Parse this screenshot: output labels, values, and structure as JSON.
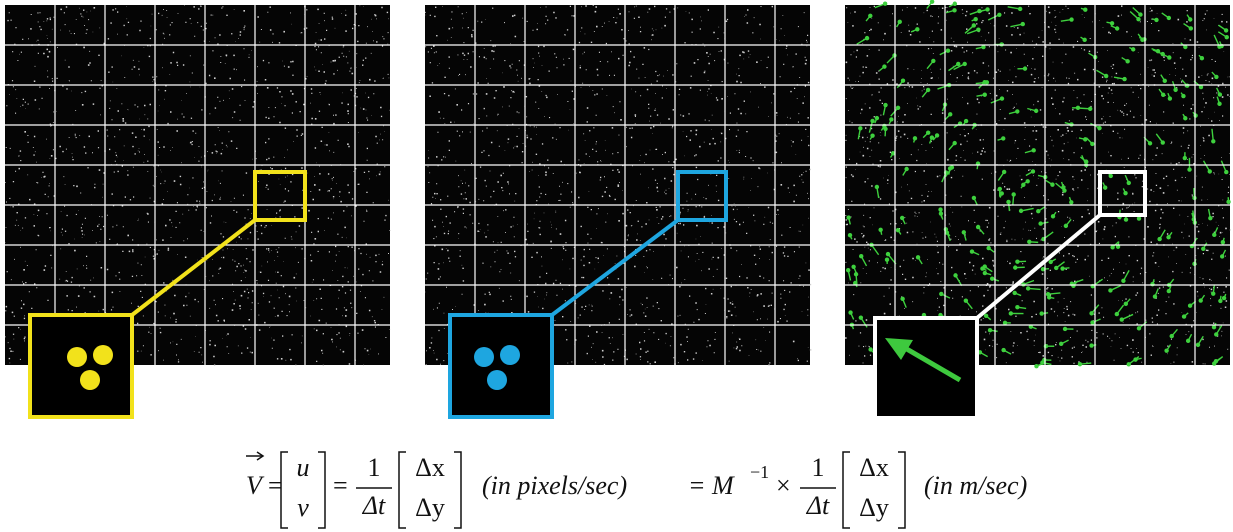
{
  "formula": {
    "vector": "V",
    "eq1": "=",
    "u": "u",
    "v": "v",
    "eq2": "=",
    "num1": "1",
    "den1": "Δt",
    "dx1": "Δx",
    "dy1": "Δy",
    "units1": "(in pixels/sec)",
    "eq3": "= M",
    "exp": "−1",
    "times": "×",
    "num2": "1",
    "den2": "Δt",
    "dx2": "Δx",
    "dy2": "Δy",
    "units2": "(in m/sec)"
  }
}
